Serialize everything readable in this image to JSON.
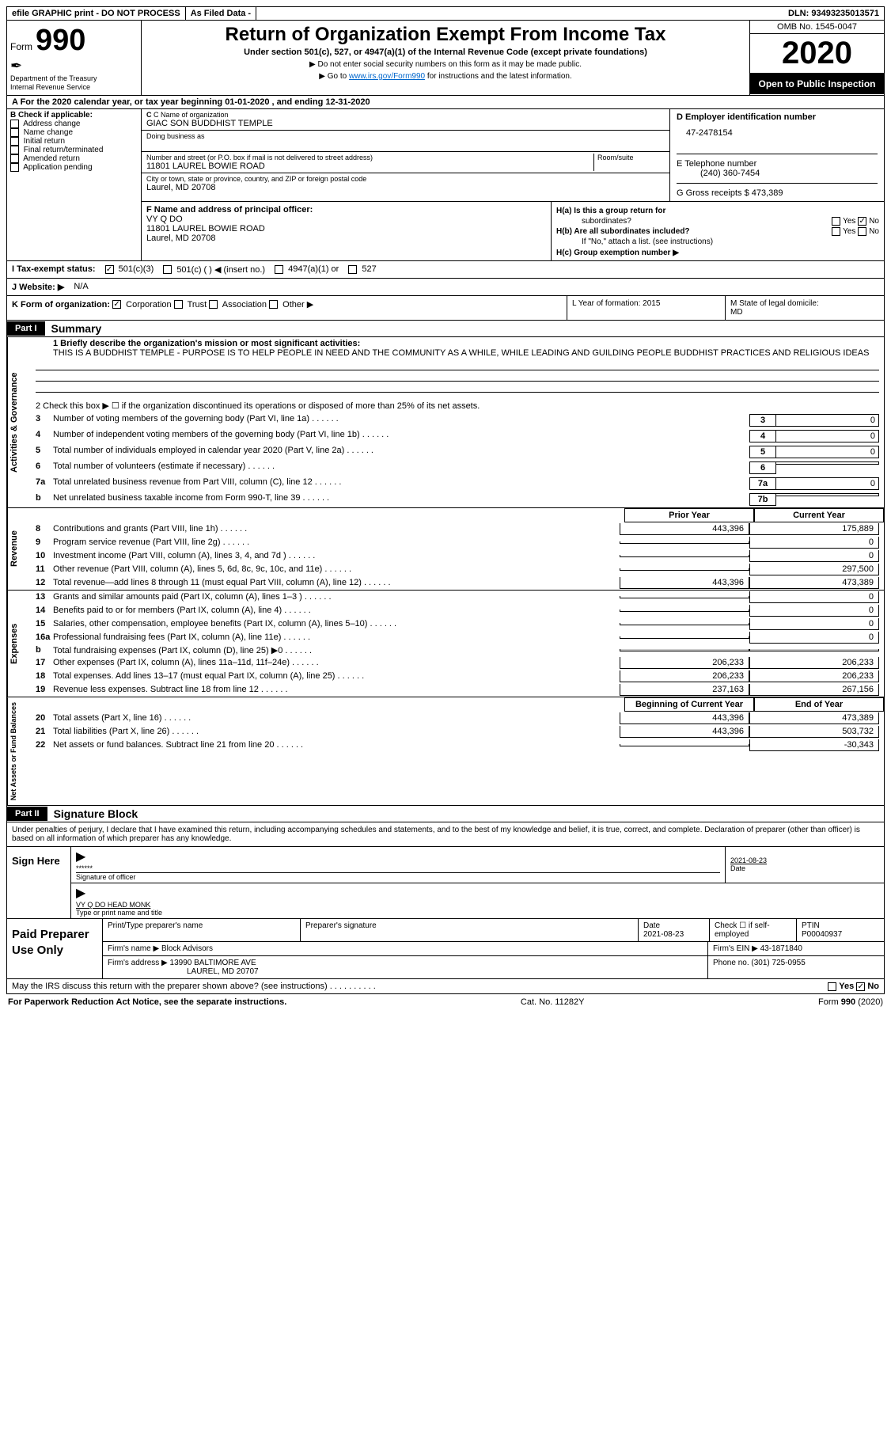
{
  "colors": {
    "black": "#000000",
    "white": "#ffffff",
    "link": "#0066cc",
    "shade": "#cccccc"
  },
  "topbar": {
    "efile": "efile GRAPHIC print - DO NOT PROCESS",
    "asfiled": "As Filed Data -",
    "dln": "DLN: 93493235013571"
  },
  "header": {
    "form_word": "Form",
    "form_num": "990",
    "dept": "Department of the Treasury\nInternal Revenue Service",
    "title": "Return of Organization Exempt From Income Tax",
    "subtitle": "Under section 501(c), 527, or 4947(a)(1) of the Internal Revenue Code (except private foundations)",
    "instr1": "▶ Do not enter social security numbers on this form as it may be made public.",
    "instr2_pre": "▶ Go to ",
    "instr2_link": "www.irs.gov/Form990",
    "instr2_post": " for instructions and the latest information.",
    "omb": "OMB No. 1545-0047",
    "year": "2020",
    "inspect": "Open to Public Inspection"
  },
  "rowA": "A   For the 2020 calendar year, or tax year beginning 01-01-2020  , and ending 12-31-2020",
  "colB": {
    "header": "B Check if applicable:",
    "items": [
      "Address change",
      "Name change",
      "Initial return",
      "Final return/terminated",
      "Amended return",
      "Application pending"
    ]
  },
  "colC": {
    "name_lbl": "C Name of organization",
    "name": "GIAC SON BUDDHIST TEMPLE",
    "dba_lbl": "Doing business as",
    "street_lbl": "Number and street (or P.O. box if mail is not delivered to street address)",
    "room_lbl": "Room/suite",
    "street": "11801 LAUREL BOWIE ROAD",
    "city_lbl": "City or town, state or province, country, and ZIP or foreign postal code",
    "city": "Laurel, MD  20708"
  },
  "colD": {
    "lbl": "D Employer identification number",
    "val": "47-2478154"
  },
  "colE": {
    "lbl": "E Telephone number",
    "val": "(240) 360-7454"
  },
  "colG": {
    "lbl": "G Gross receipts $ 473,389"
  },
  "colF": {
    "lbl": "F  Name and address of principal officer:",
    "name": "VY Q DO",
    "addr1": "11801 LAUREL BOWIE ROAD",
    "addr2": "Laurel, MD  20708"
  },
  "colH": {
    "a": "H(a)  Is this a group return for",
    "a2": "subordinates?",
    "b": "H(b)  Are all subordinates included?",
    "b2": "If \"No,\" attach a list. (see instructions)",
    "c": "H(c)  Group exemption number ▶",
    "yes": "Yes",
    "no": "No"
  },
  "rowI": {
    "lbl": "I  Tax-exempt status:",
    "o1": "501(c)(3)",
    "o2": "501(c) (   ) ◀ (insert no.)",
    "o3": "4947(a)(1) or",
    "o4": "527"
  },
  "rowJ": {
    "lbl": "J  Website: ▶",
    "val": "N/A"
  },
  "rowK": {
    "lbl": "K Form of organization:",
    "o1": "Corporation",
    "o2": "Trust",
    "o3": "Association",
    "o4": "Other ▶"
  },
  "rowL": {
    "lbl": "L Year of formation: 2015"
  },
  "rowM": {
    "lbl": "M State of legal domicile:",
    "val": "MD"
  },
  "part1": {
    "tag": "Part I",
    "title": "Summary"
  },
  "part2": {
    "tag": "Part II",
    "title": "Signature Block"
  },
  "sections": {
    "ag": "Activities & Governance",
    "rev": "Revenue",
    "exp": "Expenses",
    "nab": "Net Assets or Fund Balances"
  },
  "q1": {
    "lbl": "1 Briefly describe the organization's mission or most significant activities:",
    "text": "THIS IS A BUDDHIST TEMPLE - PURPOSE IS TO HELP PEOPLE IN NEED AND THE COMMUNITY AS A WHILE, WHILE LEADING AND GUILDING PEOPLE BUDDHIST PRACTICES AND RELIGIOUS IDEAS"
  },
  "q2": "2   Check this box ▶ ☐  if the organization discontinued its operations or disposed of more than 25% of its net assets.",
  "govlines": [
    {
      "n": "3",
      "t": "Number of voting members of the governing body (Part VI, line 1a)",
      "b": "3",
      "v": "0"
    },
    {
      "n": "4",
      "t": "Number of independent voting members of the governing body (Part VI, line 1b)",
      "b": "4",
      "v": "0"
    },
    {
      "n": "5",
      "t": "Total number of individuals employed in calendar year 2020 (Part V, line 2a)",
      "b": "5",
      "v": "0"
    },
    {
      "n": "6",
      "t": "Total number of volunteers (estimate if necessary)",
      "b": "6",
      "v": ""
    },
    {
      "n": "7a",
      "t": "Total unrelated business revenue from Part VIII, column (C), line 12",
      "b": "7a",
      "v": "0"
    },
    {
      "n": "b",
      "t": "Net unrelated business taxable income from Form 990-T, line 39",
      "b": "7b",
      "v": ""
    }
  ],
  "col_prior": "Prior Year",
  "col_curr": "Current Year",
  "col_beg": "Beginning of Current Year",
  "col_end": "End of Year",
  "revlines": [
    {
      "n": "8",
      "t": "Contributions and grants (Part VIII, line 1h)",
      "p": "443,396",
      "c": "175,889"
    },
    {
      "n": "9",
      "t": "Program service revenue (Part VIII, line 2g)",
      "p": "",
      "c": "0"
    },
    {
      "n": "10",
      "t": "Investment income (Part VIII, column (A), lines 3, 4, and 7d )",
      "p": "",
      "c": "0"
    },
    {
      "n": "11",
      "t": "Other revenue (Part VIII, column (A), lines 5, 6d, 8c, 9c, 10c, and 11e)",
      "p": "",
      "c": "297,500"
    },
    {
      "n": "12",
      "t": "Total revenue—add lines 8 through 11 (must equal Part VIII, column (A), line 12)",
      "p": "443,396",
      "c": "473,389"
    }
  ],
  "explines": [
    {
      "n": "13",
      "t": "Grants and similar amounts paid (Part IX, column (A), lines 1–3 )",
      "p": "",
      "c": "0"
    },
    {
      "n": "14",
      "t": "Benefits paid to or for members (Part IX, column (A), line 4)",
      "p": "",
      "c": "0"
    },
    {
      "n": "15",
      "t": "Salaries, other compensation, employee benefits (Part IX, column (A), lines 5–10)",
      "p": "",
      "c": "0"
    },
    {
      "n": "16a",
      "t": "Professional fundraising fees (Part IX, column (A), line 11e)",
      "p": "",
      "c": "0"
    },
    {
      "n": "b",
      "t": "Total fundraising expenses (Part IX, column (D), line 25) ▶0",
      "p": "shade",
      "c": "shade"
    },
    {
      "n": "17",
      "t": "Other expenses (Part IX, column (A), lines 11a–11d, 11f–24e)",
      "p": "206,233",
      "c": "206,233"
    },
    {
      "n": "18",
      "t": "Total expenses. Add lines 13–17 (must equal Part IX, column (A), line 25)",
      "p": "206,233",
      "c": "206,233"
    },
    {
      "n": "19",
      "t": "Revenue less expenses. Subtract line 18 from line 12",
      "p": "237,163",
      "c": "267,156"
    }
  ],
  "nablines": [
    {
      "n": "20",
      "t": "Total assets (Part X, line 16)",
      "p": "443,396",
      "c": "473,389"
    },
    {
      "n": "21",
      "t": "Total liabilities (Part X, line 26)",
      "p": "443,396",
      "c": "503,732"
    },
    {
      "n": "22",
      "t": "Net assets or fund balances. Subtract line 21 from line 20",
      "p": "",
      "c": "-30,343"
    }
  ],
  "sig": {
    "perjury": "Under penalties of perjury, I declare that I have examined this return, including accompanying schedules and statements, and to the best of my knowledge and belief, it is true, correct, and complete. Declaration of preparer (other than officer) is based on all information of which preparer has any knowledge.",
    "sign_here": "Sign Here",
    "stars": "******",
    "sig_lbl": "Signature of officer",
    "date": "2021-08-23",
    "date_lbl": "Date",
    "name": "VY Q DO HEAD MONK",
    "name_lbl": "Type or print name and title"
  },
  "paid": {
    "lbl": "Paid Preparer Use Only",
    "h1": "Print/Type preparer's name",
    "h2": "Preparer's signature",
    "h3": "Date",
    "h3v": "2021-08-23",
    "h4": "Check ☐ if self-employed",
    "h5": "PTIN",
    "h5v": "P00040937",
    "firm_lbl": "Firm's name    ▶",
    "firm": "Block Advisors",
    "ein_lbl": "Firm's EIN ▶",
    "ein": "43-1871840",
    "addr_lbl": "Firm's address ▶",
    "addr1": "13990 BALTIMORE AVE",
    "addr2": "LAUREL, MD  20707",
    "phone_lbl": "Phone no.",
    "phone": "(301) 725-0955"
  },
  "discuss": "May the IRS discuss this return with the preparer shown above? (see instructions)",
  "footer": {
    "left": "For Paperwork Reduction Act Notice, see the separate instructions.",
    "mid": "Cat. No. 11282Y",
    "right_pre": "Form ",
    "right_b": "990",
    "right_post": " (2020)"
  }
}
